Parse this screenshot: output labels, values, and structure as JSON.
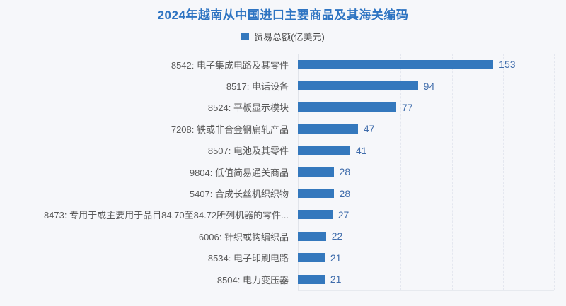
{
  "chart_data": {
    "type": "bar",
    "orientation": "horizontal",
    "title": "2024年越南从中国进口主要商品及其海关编码",
    "legend": [
      "贸易总额(亿美元)"
    ],
    "legend_position": "top-center",
    "categories": [
      "8542: 电子集成电路及其零件",
      "8517: 电话设备",
      "8524: 平板显示模块",
      "7208: 铁或非合金钢扁轧产品",
      "8507: 电池及其零件",
      "9804: 低值简易通关商品",
      "5407: 合成长丝机织织物",
      "8473: 专用于或主要用于品目84.70至84.72所列机器的零件...",
      "6006: 针织或钩编织品",
      "8534: 电子印刷电路",
      "8504: 电力变压器"
    ],
    "values": [
      153,
      94,
      77,
      47,
      41,
      28,
      28,
      27,
      22,
      21,
      21
    ],
    "xlim": [
      0,
      200
    ],
    "grid": "dashed vertical gridlines every 40 units",
    "value_labels": "shown at end of each bar",
    "colors": {
      "bar": "#3478bd",
      "title": "#2e74c2",
      "value_label": "#3f6cab",
      "category_label": "#595959",
      "legend_text": "#4a4a4a",
      "gridline": "#e4e7ef",
      "axis": "#e1e4ea",
      "background": "#f6f7fa"
    }
  }
}
